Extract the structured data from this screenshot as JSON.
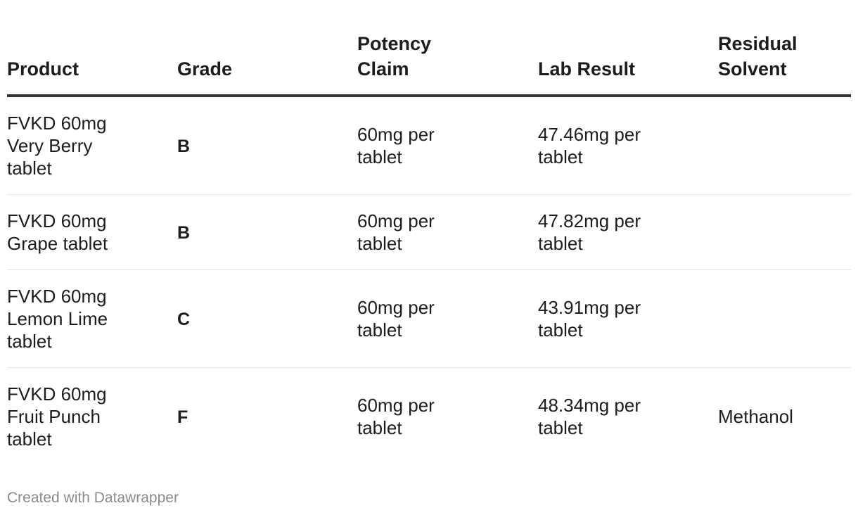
{
  "table": {
    "headers": [
      {
        "key": "product",
        "label": "Product"
      },
      {
        "key": "grade",
        "label": "Grade"
      },
      {
        "key": "claim",
        "label": "Potency Claim"
      },
      {
        "key": "lab",
        "label": "Lab Result"
      },
      {
        "key": "solvent",
        "label": "Residual Solvent"
      }
    ],
    "rows": [
      {
        "product": "FVKD 60mg Very Berry tablet",
        "grade": "B",
        "claim": "60mg per tablet",
        "lab": "47.46mg per tablet",
        "solvent": ""
      },
      {
        "product": "FVKD 60mg Grape tablet",
        "grade": "B",
        "claim": "60mg per tablet",
        "lab": "47.82mg per tablet",
        "solvent": ""
      },
      {
        "product": "FVKD 60mg Lemon Lime tablet",
        "grade": "C",
        "claim": "60mg per tablet",
        "lab": "43.91mg per tablet",
        "solvent": ""
      },
      {
        "product": "FVKD 60mg Fruit Punch tablet",
        "grade": "F",
        "claim": "60mg per tablet",
        "lab": "48.34mg per tablet",
        "solvent": "Methanol"
      }
    ]
  },
  "footer": {
    "credit": "Created with Datawrapper"
  }
}
